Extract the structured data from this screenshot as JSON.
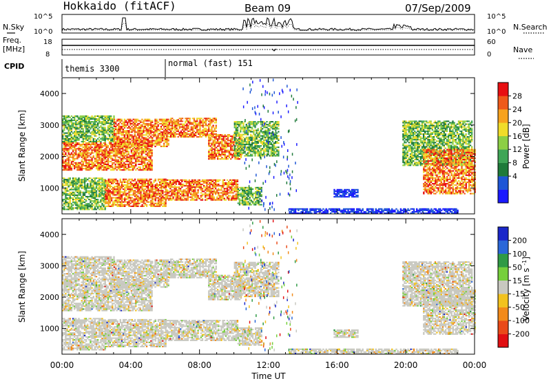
{
  "header": {
    "station": "Hokkaido (fitACF)",
    "beam": "Beam 09",
    "date": "07/Sep/2009"
  },
  "left_labels": {
    "nsky": "N.Sky",
    "freq_line1": "Freq.",
    "freq_line2": "[MHz]",
    "cpid": "CPID"
  },
  "right_labels": {
    "nsearch": "N.Search",
    "nave": "Nave"
  },
  "noise_panel": {
    "left_ticks": [
      "10^5",
      "10^0"
    ],
    "right_ticks": [
      "10^5",
      "10^0"
    ]
  },
  "freq_panel": {
    "left_ticks": [
      "18",
      "8"
    ],
    "right_ticks": [
      "60",
      "0"
    ]
  },
  "cpid_panel": {
    "modes": [
      {
        "label": "themis 3300",
        "start_h": 0,
        "end_h": 6
      },
      {
        "label": "normal (fast) 151",
        "start_h": 6,
        "end_h": 24
      }
    ]
  },
  "power_colorbar": {
    "title": "Power [dB]",
    "ticks": [
      "28",
      "24",
      "20",
      "16",
      "12",
      "8",
      "4"
    ],
    "colors": [
      "#1a1aff",
      "#1e56d6",
      "#1f7a3a",
      "#3fa556",
      "#8ccf45",
      "#f0dc2a",
      "#f7a21e",
      "#ef5a1a",
      "#e80f12"
    ]
  },
  "velocity_colorbar": {
    "title": "Velocity [m s^-1]",
    "ticks": [
      "200",
      "100",
      "50",
      "15",
      "-15",
      "-50",
      "-100",
      "-200"
    ],
    "colors": [
      "#1a27c9",
      "#2a67d8",
      "#2f9a45",
      "#76cf3b",
      "#c8c8c0",
      "#f2c21e",
      "#f28a1a",
      "#ea4a18",
      "#e10f12"
    ]
  },
  "chart_data": {
    "type": "heatmap",
    "xlabel": "Time UT",
    "ylabel": "Slant Range [km]",
    "x_ticks": [
      "00:00",
      "04:00",
      "08:00",
      "12:00",
      "16:00",
      "20:00",
      "00:00"
    ],
    "y_ticks": [
      "1000",
      "2000",
      "3000",
      "4000"
    ],
    "xlim_hours": [
      0,
      24
    ],
    "ylim_km": [
      180,
      4500
    ],
    "power_regions": [
      {
        "t0": 0.0,
        "t1": 5.2,
        "r0": 1550,
        "r1": 2450,
        "level": "high"
      },
      {
        "t0": 0.0,
        "t1": 3.0,
        "r0": 2450,
        "r1": 3300,
        "level": "medium"
      },
      {
        "t0": 3.0,
        "t1": 6.2,
        "r0": 2300,
        "r1": 3200,
        "level": "high"
      },
      {
        "t0": 6.2,
        "t1": 9.0,
        "r0": 2600,
        "r1": 3200,
        "level": "high"
      },
      {
        "t0": 8.5,
        "t1": 10.4,
        "r0": 1900,
        "r1": 2700,
        "level": "high"
      },
      {
        "t0": 10.0,
        "t1": 12.6,
        "r0": 2000,
        "r1": 3100,
        "level": "medium"
      },
      {
        "t0": 0.0,
        "t1": 2.5,
        "r0": 300,
        "r1": 1300,
        "level": "medium"
      },
      {
        "t0": 2.5,
        "t1": 6.0,
        "r0": 400,
        "r1": 1300,
        "level": "high"
      },
      {
        "t0": 6.0,
        "t1": 10.2,
        "r0": 600,
        "r1": 1250,
        "level": "high"
      },
      {
        "t0": 10.2,
        "t1": 11.6,
        "r0": 450,
        "r1": 1000,
        "level": "medium"
      },
      {
        "t0": 15.8,
        "t1": 17.2,
        "r0": 700,
        "r1": 950,
        "level": "low"
      },
      {
        "t0": 19.8,
        "t1": 23.8,
        "r0": 1700,
        "r1": 3100,
        "level": "medium"
      },
      {
        "t0": 21.0,
        "t1": 24.0,
        "r0": 800,
        "r1": 2200,
        "level": "high"
      },
      {
        "t0": 13.2,
        "t1": 23.0,
        "r0": 180,
        "r1": 320,
        "level": "low"
      }
    ]
  }
}
